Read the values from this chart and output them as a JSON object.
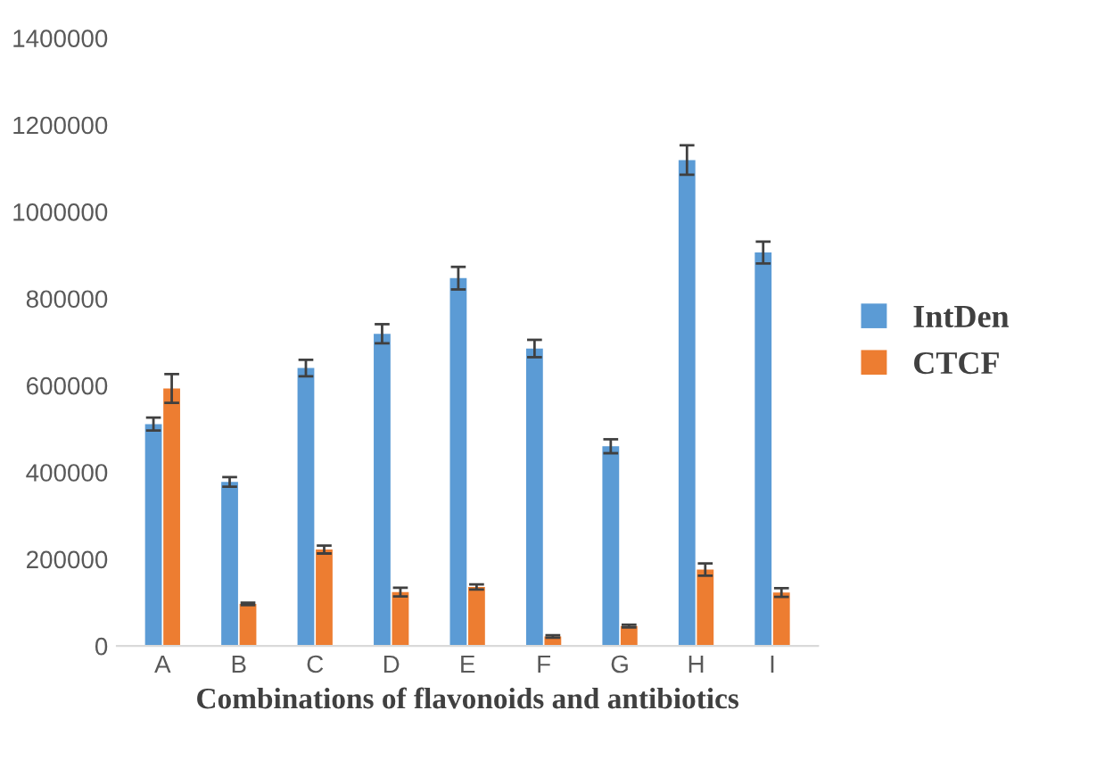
{
  "chart_data": {
    "type": "bar",
    "xlabel": "Combinations of flavonoids and antibiotics",
    "categories": [
      "A",
      "B",
      "C",
      "D",
      "E",
      "F",
      "G",
      "H",
      "I"
    ],
    "series": [
      {
        "name": "IntDen",
        "color": "#5b9bd5",
        "values": [
          511000,
          378000,
          640000,
          719000,
          847000,
          685000,
          460000,
          1119000,
          906000
        ],
        "errors": [
          15000,
          11000,
          19000,
          22000,
          26000,
          20000,
          16000,
          34000,
          25000
        ]
      },
      {
        "name": "CTCF",
        "color": "#ed7d31",
        "values": [
          593000,
          97000,
          222000,
          124000,
          136000,
          22000,
          46000,
          176000,
          123000
        ],
        "errors": [
          33000,
          3000,
          9000,
          10000,
          6000,
          3000,
          3000,
          14000,
          10000
        ]
      }
    ],
    "ylim": [
      0,
      1400000
    ],
    "yticks": [
      0,
      200000,
      400000,
      600000,
      800000,
      1000000,
      1200000,
      1400000
    ],
    "grid": false,
    "legend": "right"
  }
}
